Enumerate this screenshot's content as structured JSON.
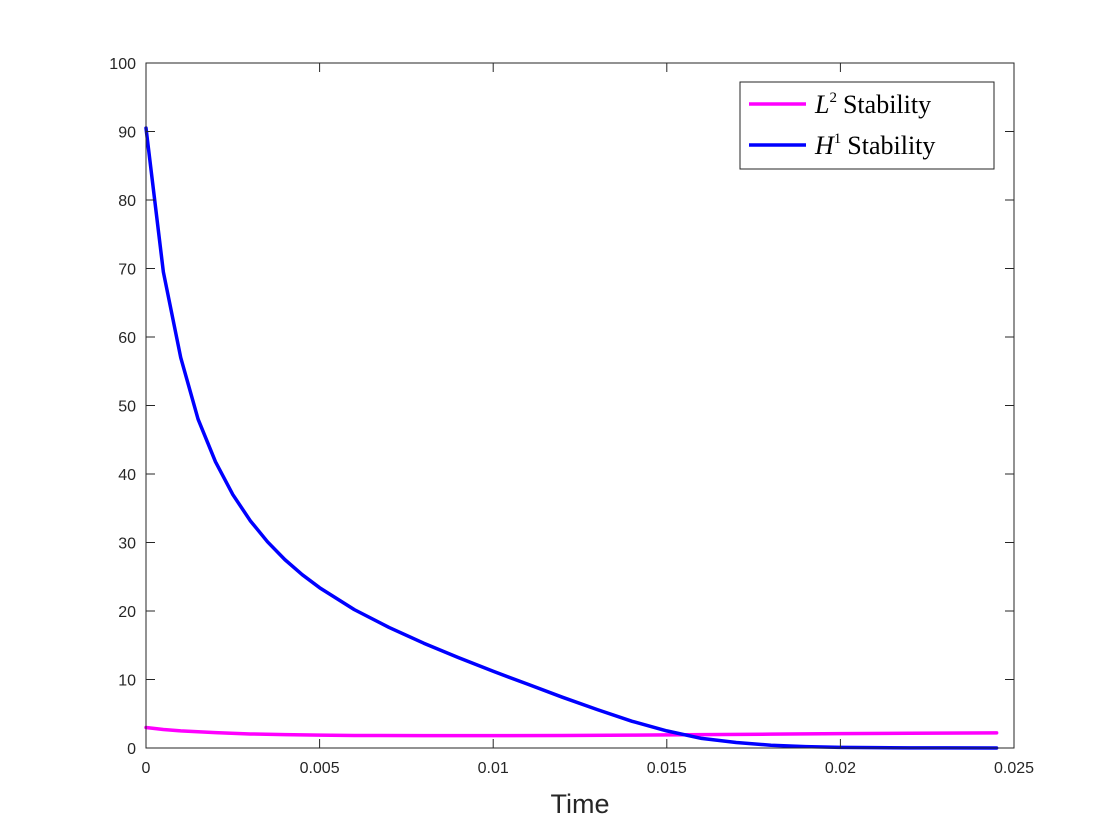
{
  "chart_data": {
    "type": "line",
    "title": "",
    "xlabel": "Time",
    "ylabel": "",
    "xlim": [
      0,
      0.025
    ],
    "ylim": [
      0,
      100
    ],
    "xticks": [
      0,
      0.005,
      0.01,
      0.015,
      0.02,
      0.025
    ],
    "xtick_labels": [
      "0",
      "0.005",
      "0.01",
      "0.015",
      "0.02",
      "0.025"
    ],
    "yticks": [
      0,
      10,
      20,
      30,
      40,
      50,
      60,
      70,
      80,
      90,
      100
    ],
    "ytick_labels": [
      "0",
      "10",
      "20",
      "30",
      "40",
      "50",
      "60",
      "70",
      "80",
      "90",
      "100"
    ],
    "grid": false,
    "legend_position": "top-right",
    "series": [
      {
        "name": "L2 Stability",
        "legend_base": "L",
        "legend_sup": "2",
        "legend_rest": "Stability",
        "color": "#ff00ff",
        "x": [
          0,
          0.0005,
          0.001,
          0.002,
          0.003,
          0.004,
          0.005,
          0.006,
          0.008,
          0.01,
          0.012,
          0.014,
          0.016,
          0.018,
          0.02,
          0.022,
          0.0245
        ],
        "y": [
          3.0,
          2.7,
          2.5,
          2.25,
          2.05,
          1.95,
          1.88,
          1.83,
          1.8,
          1.8,
          1.83,
          1.88,
          1.95,
          2.02,
          2.1,
          2.15,
          2.2
        ]
      },
      {
        "name": "H1 Stability",
        "legend_base": "H",
        "legend_sup": "1",
        "legend_rest": "Stability",
        "color": "#0000ff",
        "x": [
          0,
          0.0005,
          0.001,
          0.0015,
          0.002,
          0.0025,
          0.003,
          0.0035,
          0.004,
          0.0045,
          0.005,
          0.006,
          0.007,
          0.008,
          0.009,
          0.01,
          0.011,
          0.012,
          0.013,
          0.014,
          0.015,
          0.016,
          0.017,
          0.018,
          0.019,
          0.02,
          0.021,
          0.022,
          0.023,
          0.0245
        ],
        "y": [
          90.5,
          69.5,
          57,
          48,
          41.8,
          37,
          33.2,
          30.1,
          27.5,
          25.3,
          23.4,
          20.2,
          17.6,
          15.3,
          13.2,
          11.2,
          9.3,
          7.4,
          5.6,
          3.9,
          2.5,
          1.4,
          0.8,
          0.4,
          0.2,
          0.1,
          0.05,
          0.02,
          0.01,
          0
        ]
      }
    ]
  }
}
